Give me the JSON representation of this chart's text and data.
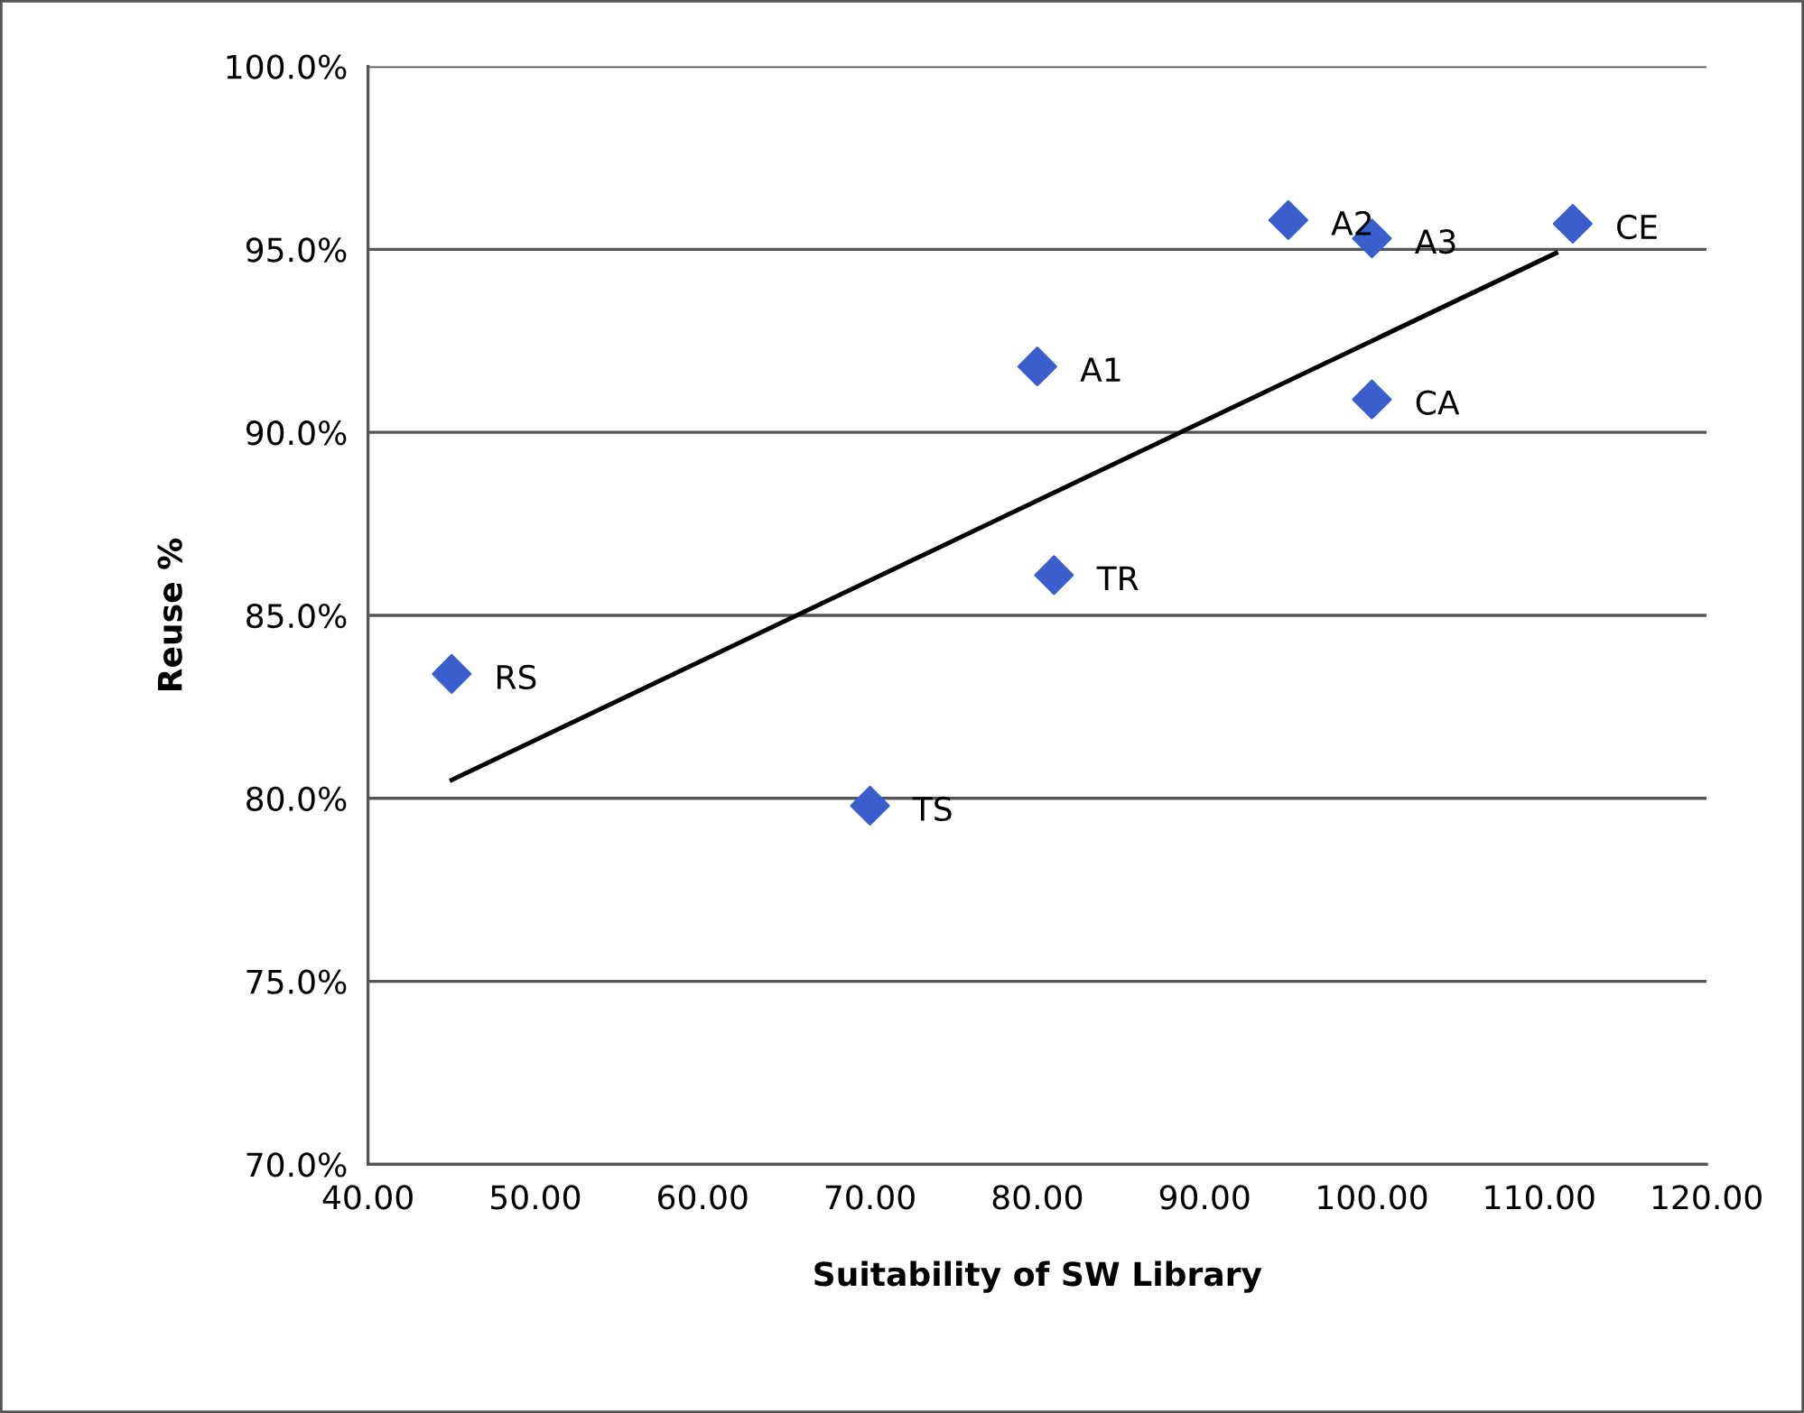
{
  "chart_data": {
    "type": "scatter",
    "xlabel": "Suitability of SW Library",
    "ylabel": "Reuse %",
    "series": [
      {
        "color": "#3a5fcd",
        "marker": "diamond",
        "x": [
          45,
          70,
          80,
          81,
          95,
          100,
          100,
          112
        ],
        "values": [
          83.4,
          79.8,
          91.8,
          86.1,
          95.8,
          95.3,
          90.9,
          95.7
        ]
      },
      {
        "type": "line",
        "color": "#000000",
        "marker": "none",
        "line_style": "solid",
        "x": [
          45,
          111
        ],
        "values": [
          80.5,
          94.9
        ]
      }
    ],
    "annotations": [
      {
        "text": "RS",
        "x": 45,
        "y": 83.4
      },
      {
        "text": "TS",
        "x": 70,
        "y": 79.8
      },
      {
        "text": "A1",
        "x": 80,
        "y": 91.8
      },
      {
        "text": "TR",
        "x": 81,
        "y": 86.1
      },
      {
        "text": "A2",
        "x": 95,
        "y": 95.8
      },
      {
        "text": "A3",
        "x": 100,
        "y": 95.3
      },
      {
        "text": "CA",
        "x": 100,
        "y": 90.9
      },
      {
        "text": "CE",
        "x": 112,
        "y": 95.7
      }
    ],
    "xlim": [
      40,
      120
    ],
    "xticks": [
      {
        "value": 40,
        "label": "40.00"
      },
      {
        "value": 50,
        "label": "50.00"
      },
      {
        "value": 60,
        "label": "60.00"
      },
      {
        "value": 70,
        "label": "70.00"
      },
      {
        "value": 80,
        "label": "80.00"
      },
      {
        "value": 90,
        "label": "90.00"
      },
      {
        "value": 100,
        "label": "100.00"
      },
      {
        "value": 110,
        "label": "110.00"
      },
      {
        "value": 120,
        "label": "120.00"
      }
    ],
    "ylim": [
      70,
      100
    ],
    "yticks": [
      {
        "value": 70,
        "label": "70.0%"
      },
      {
        "value": 75,
        "label": "75.0%"
      },
      {
        "value": 80,
        "label": "80.0%"
      },
      {
        "value": 85,
        "label": "85.0%"
      },
      {
        "value": 90,
        "label": "90.0%"
      },
      {
        "value": 95,
        "label": "95.0%"
      },
      {
        "value": 100,
        "label": "100.0%"
      }
    ],
    "grid": "y",
    "legend": false
  }
}
